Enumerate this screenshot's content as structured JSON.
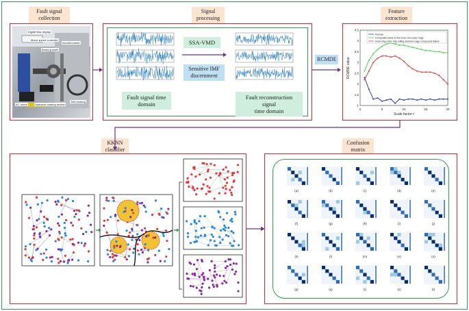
{
  "stages": {
    "collection": "Fault signal\ncollection",
    "processing": "Signal\nprocessing",
    "extraction": "Feature\nextraction",
    "classifier": "KKNN\nclassifier",
    "confusion": "Confusion\nmatrix"
  },
  "processing": {
    "ssa_vmd": "SSA-VMD",
    "sensitive_imf": "Sensitive IMF\ndiscernment",
    "time_domain": "Fault signal time\ndomain",
    "recon_domain": "Fault reconstruction signal\ntime domain"
  },
  "rcmde_label": "RCMDE",
  "rig_labels": {
    "digital_display": "Digital flaw display",
    "motor_speed": "Motor speed controller",
    "bearing_shaft": "Bearing shaft",
    "accelerometer": "Accelerometer",
    "ac_motor": "AC motor",
    "loading_section": "Hydraulic loading section",
    "test_bearing": "Test bearing"
  },
  "chart_data": {
    "type": "line",
    "xlabel": "Scale factor τ",
    "ylabel": "RCMDE value",
    "x_ticks": [
      "0",
      "5",
      "10",
      "15",
      "20"
    ],
    "y_ticks": [
      "1",
      "1.5",
      "2",
      "2.5",
      "3",
      "3.5",
      "4",
      "4.5"
    ],
    "xlim": [
      0,
      20
    ],
    "ylim": [
      1,
      4.5
    ],
    "legend_position": "top-right",
    "x": [
      1,
      2,
      3,
      4,
      5,
      6,
      7,
      8,
      9,
      10,
      11,
      12,
      13,
      14,
      15,
      16,
      17,
      18,
      19,
      20
    ],
    "series": [
      {
        "name": "Normal",
        "color": "#2b3cc6",
        "values": [
          2.3,
          1.75,
          1.3,
          1.35,
          1.2,
          1.25,
          1.3,
          1.1,
          1.3,
          1.25,
          1.3,
          1.3,
          1.25,
          1.3,
          1.25,
          1.3,
          1.25,
          1.3,
          1.3,
          1.3
        ]
      },
      {
        "name": "Composite faults in the inner and outer rings",
        "color": "#4bd64b",
        "values": [
          2.6,
          3.1,
          3.4,
          3.6,
          3.75,
          3.85,
          3.9,
          3.85,
          3.8,
          3.8,
          3.75,
          3.7,
          3.65,
          3.6,
          3.55,
          3.55,
          3.5,
          3.5,
          3.45,
          3.45
        ]
      },
      {
        "name": "Inner ring-outer ring-rolling element-cage compound failure",
        "color": "#e23a3a",
        "values": [
          2.2,
          2.6,
          3.0,
          3.2,
          3.3,
          3.3,
          3.25,
          3.3,
          3.2,
          3.05,
          2.85,
          2.7,
          2.6,
          2.55,
          2.55,
          2.55,
          2.5,
          2.4,
          2.2,
          2.0
        ]
      }
    ]
  },
  "confusion_labels": [
    "(a)",
    "(b)",
    "(c)",
    "(d)",
    "(e)",
    "(f)",
    "(g)",
    "(h)",
    "(i)",
    "(j)",
    "(k)",
    "(l)",
    "(m)",
    "(n)",
    "(o)",
    "(p)",
    "(q)",
    "(r)",
    "(s)",
    "(t)"
  ],
  "colors": {
    "outer_border": "#2aa24a",
    "red_border": "#d9262c",
    "arrow": "#6a2d8f",
    "signal": "#2a7fc1"
  }
}
